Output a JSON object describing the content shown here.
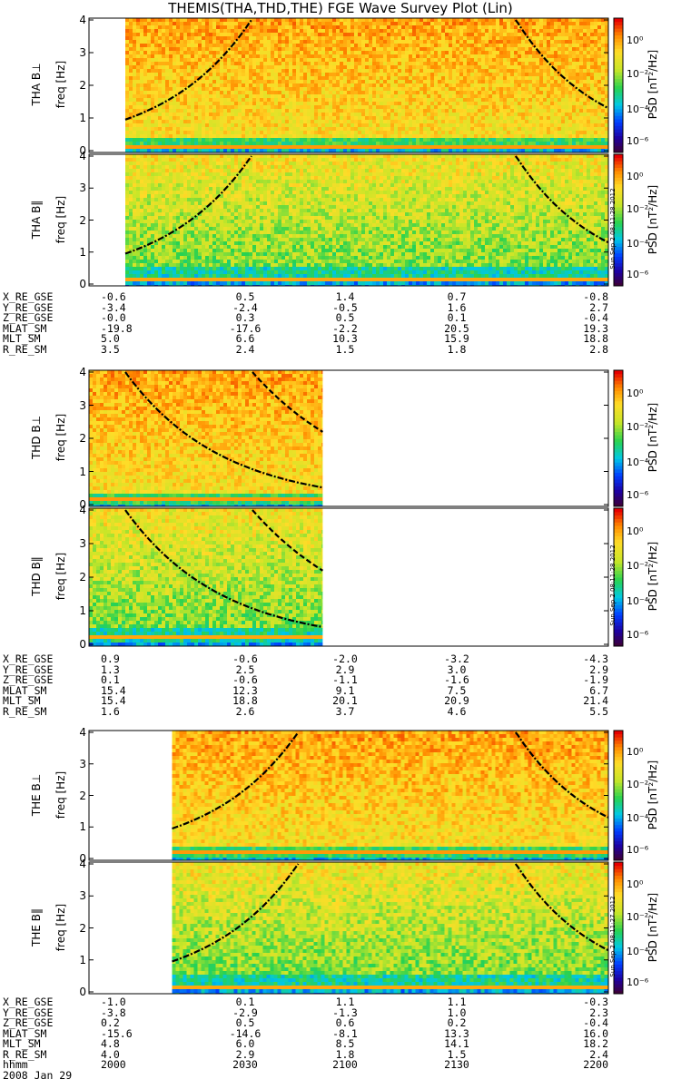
{
  "title": "THEMIS(THA,THD,THE) FGE Wave Survey Plot (Lin)",
  "colorbar": {
    "label": "PSD [nT²/Hz]",
    "tick_labels": [
      "10⁰",
      "10⁻²",
      "10⁻⁴",
      "10⁻⁶"
    ]
  },
  "chart_data": [
    {
      "type": "heatmap",
      "panels": [
        {
          "ylabel": "THA B⊥",
          "sublabel": "freq [Hz]",
          "yticks": [
            "4",
            "3",
            "2",
            "1",
            "0"
          ],
          "ylim": [
            0,
            4
          ],
          "data_xrange": [
            0.07,
            1.0
          ],
          "curves": "edges"
        },
        {
          "ylabel": "THA B‖",
          "sublabel": "freq [Hz]",
          "yticks": [
            "4",
            "3",
            "2",
            "1",
            "0"
          ],
          "ylim": [
            0,
            4
          ],
          "data_xrange": [
            0.07,
            1.0
          ],
          "curves": "edges",
          "stamp": "Sun Sep  2 08:11:28 2012"
        }
      ],
      "ephemeris": {
        "labels": [
          "X_RE_GSE",
          "Y_RE_GSE",
          "Z_RE_GSE",
          "MLAT_SM",
          "MLT_SM",
          "R_RE_SM"
        ],
        "columns": [
          [
            "-0.6",
            "-3.4",
            "-0.0",
            "-19.8",
            "5.0",
            "3.5"
          ],
          [
            "0.5",
            "-2.4",
            "0.3",
            "-17.6",
            "6.6",
            "2.4"
          ],
          [
            "1.4",
            "-0.5",
            "0.5",
            "-2.2",
            "10.3",
            "1.5"
          ],
          [
            "0.7",
            "1.6",
            "0.1",
            "20.5",
            "15.9",
            "1.8"
          ],
          [
            "-0.8",
            "2.7",
            "-0.4",
            "19.3",
            "18.8",
            "2.8"
          ]
        ]
      }
    },
    {
      "type": "heatmap",
      "panels": [
        {
          "ylabel": "THD B⊥",
          "sublabel": "freq [Hz]",
          "yticks": [
            "4",
            "3",
            "2",
            "1",
            "0"
          ],
          "ylim": [
            0,
            4
          ],
          "data_xrange": [
            0.0,
            0.45
          ],
          "curves": "decay"
        },
        {
          "ylabel": "THD B‖",
          "sublabel": "freq [Hz]",
          "yticks": [
            "4",
            "3",
            "2",
            "1",
            "0"
          ],
          "ylim": [
            0,
            4
          ],
          "data_xrange": [
            0.0,
            0.45
          ],
          "curves": "decay",
          "stamp": "Sun Sep  2 08:11:28 2012"
        }
      ],
      "ephemeris": {
        "labels": [
          "X_RE_GSE",
          "Y_RE_GSE",
          "Z_RE_GSE",
          "MLAT_SM",
          "MLT_SM",
          "R_RE_SM"
        ],
        "columns": [
          [
            "0.9",
            "1.3",
            "0.1",
            "15.4",
            "15.4",
            "1.6"
          ],
          [
            "-0.6",
            "2.5",
            "-0.6",
            "12.3",
            "18.8",
            "2.6"
          ],
          [
            "-2.0",
            "2.9",
            "-1.1",
            "9.1",
            "20.1",
            "3.7"
          ],
          [
            "-3.2",
            "3.0",
            "-1.6",
            "7.5",
            "20.9",
            "4.6"
          ],
          [
            "-4.3",
            "2.9",
            "-1.9",
            "6.7",
            "21.4",
            "5.5"
          ]
        ]
      }
    },
    {
      "type": "heatmap",
      "panels": [
        {
          "ylabel": "THE B⊥",
          "sublabel": "freq [Hz]",
          "yticks": [
            "4",
            "3",
            "2",
            "1",
            "0"
          ],
          "ylim": [
            0,
            4
          ],
          "data_xrange": [
            0.16,
            1.0
          ],
          "curves": "edges"
        },
        {
          "ylabel": "THE B‖",
          "sublabel": "freq [Hz]",
          "yticks": [
            "4",
            "3",
            "2",
            "1",
            "0"
          ],
          "ylim": [
            0,
            4
          ],
          "data_xrange": [
            0.16,
            1.0
          ],
          "curves": "edges",
          "stamp": "Sun Sep  2 08:11:27 2012"
        }
      ],
      "ephemeris": {
        "labels": [
          "X_RE_GSE",
          "Y_RE_GSE",
          "Z_RE_GSE",
          "MLAT_SM",
          "MLT_SM",
          "R_RE_SM",
          "hhmm",
          "2008 Jan 29"
        ],
        "columns": [
          [
            "-1.0",
            "-3.8",
            "0.2",
            "-15.6",
            "4.8",
            "4.0",
            "2000"
          ],
          [
            "0.1",
            "-2.9",
            "0.5",
            "-14.6",
            "6.0",
            "2.9",
            "2030"
          ],
          [
            "1.1",
            "-1.3",
            "0.6",
            "-8.1",
            "8.5",
            "1.8",
            "2100"
          ],
          [
            "1.1",
            "1.0",
            "0.2",
            "13.3",
            "14.1",
            "1.5",
            "2130"
          ],
          [
            "-0.3",
            "2.3",
            "-0.4",
            "16.0",
            "18.2",
            "2.4",
            "2200"
          ]
        ]
      }
    }
  ]
}
